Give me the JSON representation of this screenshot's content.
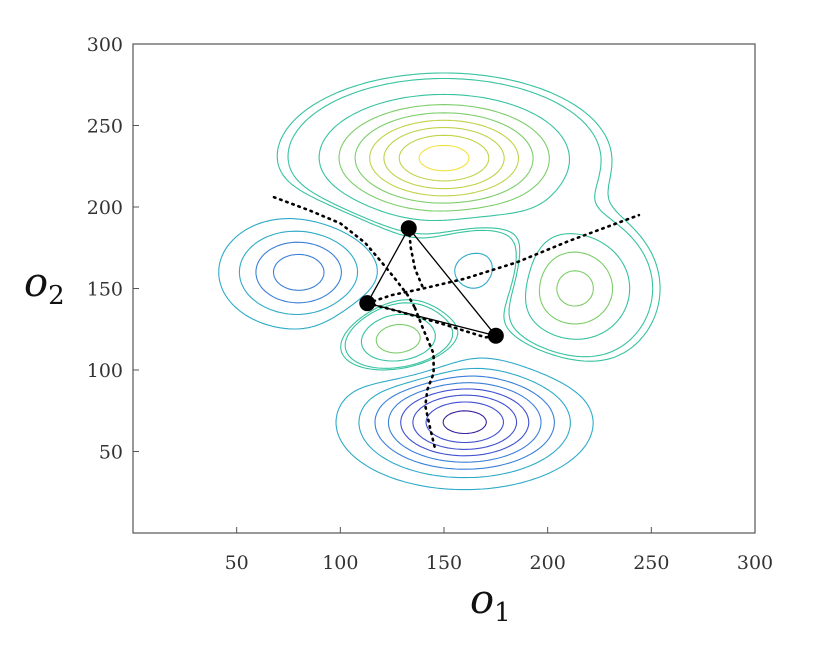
{
  "chart_data": {
    "type": "contour",
    "xlabel": {
      "main": "o",
      "sub": "1"
    },
    "ylabel": {
      "main": "o",
      "sub": "2"
    },
    "xlim": [
      0,
      300
    ],
    "ylim": [
      0,
      300
    ],
    "xticks": [
      50,
      100,
      150,
      200,
      250,
      300
    ],
    "yticks": [
      50,
      100,
      150,
      200,
      250,
      300
    ],
    "grid": false,
    "colormap": [
      "#3a1e9c",
      "#3f4fd0",
      "#3a7fd8",
      "#2eaac8",
      "#37c2a0",
      "#7ccd6a",
      "#c2d24a",
      "#f2e23c"
    ],
    "contour_levels": 8,
    "field_components": [
      {
        "center": [
          150,
          230
        ],
        "spread": [
          34,
          22
        ],
        "amplitude": 1.0
      },
      {
        "center": [
          80,
          160
        ],
        "spread": [
          22,
          20
        ],
        "amplitude": -0.55
      },
      {
        "center": [
          213,
          150
        ],
        "spread": [
          20,
          24
        ],
        "amplitude": 0.5
      },
      {
        "center": [
          128,
          118
        ],
        "spread": [
          16,
          14
        ],
        "amplitude": 0.45
      },
      {
        "center": [
          160,
          68
        ],
        "spread": [
          30,
          20
        ],
        "amplitude": -1.0
      },
      {
        "center": [
          168,
          162
        ],
        "spread": [
          14,
          16
        ],
        "amplitude": -0.2
      }
    ],
    "simplex": {
      "vertices": [
        {
          "x": 133,
          "y": 187
        },
        {
          "x": 113,
          "y": 141
        },
        {
          "x": 175,
          "y": 121
        }
      ],
      "color": "#000000"
    },
    "paths": [
      {
        "points": [
          [
            68,
            206
          ],
          [
            85,
            198
          ],
          [
            100,
            190
          ],
          [
            112,
            178
          ],
          [
            120,
            166
          ],
          [
            127,
            155
          ],
          [
            133,
            145
          ],
          [
            136,
            138
          ]
        ]
      },
      {
        "points": [
          [
            133,
            187
          ],
          [
            134,
            175
          ],
          [
            136,
            162
          ],
          [
            140,
            150
          ]
        ]
      },
      {
        "points": [
          [
            113,
            141
          ],
          [
            125,
            146
          ],
          [
            140,
            150
          ],
          [
            160,
            156
          ],
          [
            185,
            166
          ],
          [
            210,
            179
          ],
          [
            244,
            195
          ]
        ]
      },
      {
        "points": [
          [
            113,
            141
          ],
          [
            128,
            136
          ],
          [
            150,
            128
          ],
          [
            170,
            120
          ],
          [
            175,
            121
          ]
        ]
      },
      {
        "points": [
          [
            136,
            138
          ],
          [
            140,
            125
          ],
          [
            145,
            110
          ],
          [
            145,
            98
          ],
          [
            142,
            88
          ],
          [
            141,
            78
          ],
          [
            143,
            66
          ],
          [
            146,
            50
          ]
        ]
      }
    ]
  }
}
